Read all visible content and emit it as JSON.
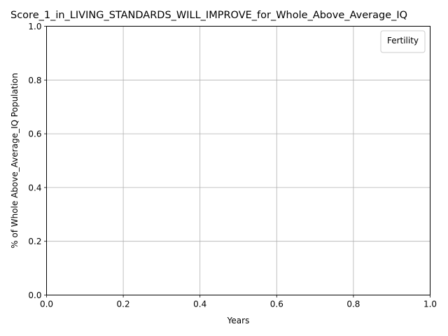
{
  "chart_data": {
    "type": "line",
    "title": "Score_1_in_LIVING_STANDARDS_WILL_IMPROVE_for_Whole_Above_Average_IQ",
    "xlabel": "Years",
    "ylabel": "% of Whole Above_Average_IQ Population",
    "xlim": [
      0.0,
      1.0
    ],
    "ylim": [
      0.0,
      1.0
    ],
    "x_ticks": [
      "0.0",
      "0.2",
      "0.4",
      "0.6",
      "0.8",
      "1.0"
    ],
    "y_ticks": [
      "0.0",
      "0.2",
      "0.4",
      "0.6",
      "0.8",
      "1.0"
    ],
    "grid": true,
    "legend": {
      "title": "Fertility",
      "position": "top-right",
      "entries": []
    },
    "series": []
  }
}
